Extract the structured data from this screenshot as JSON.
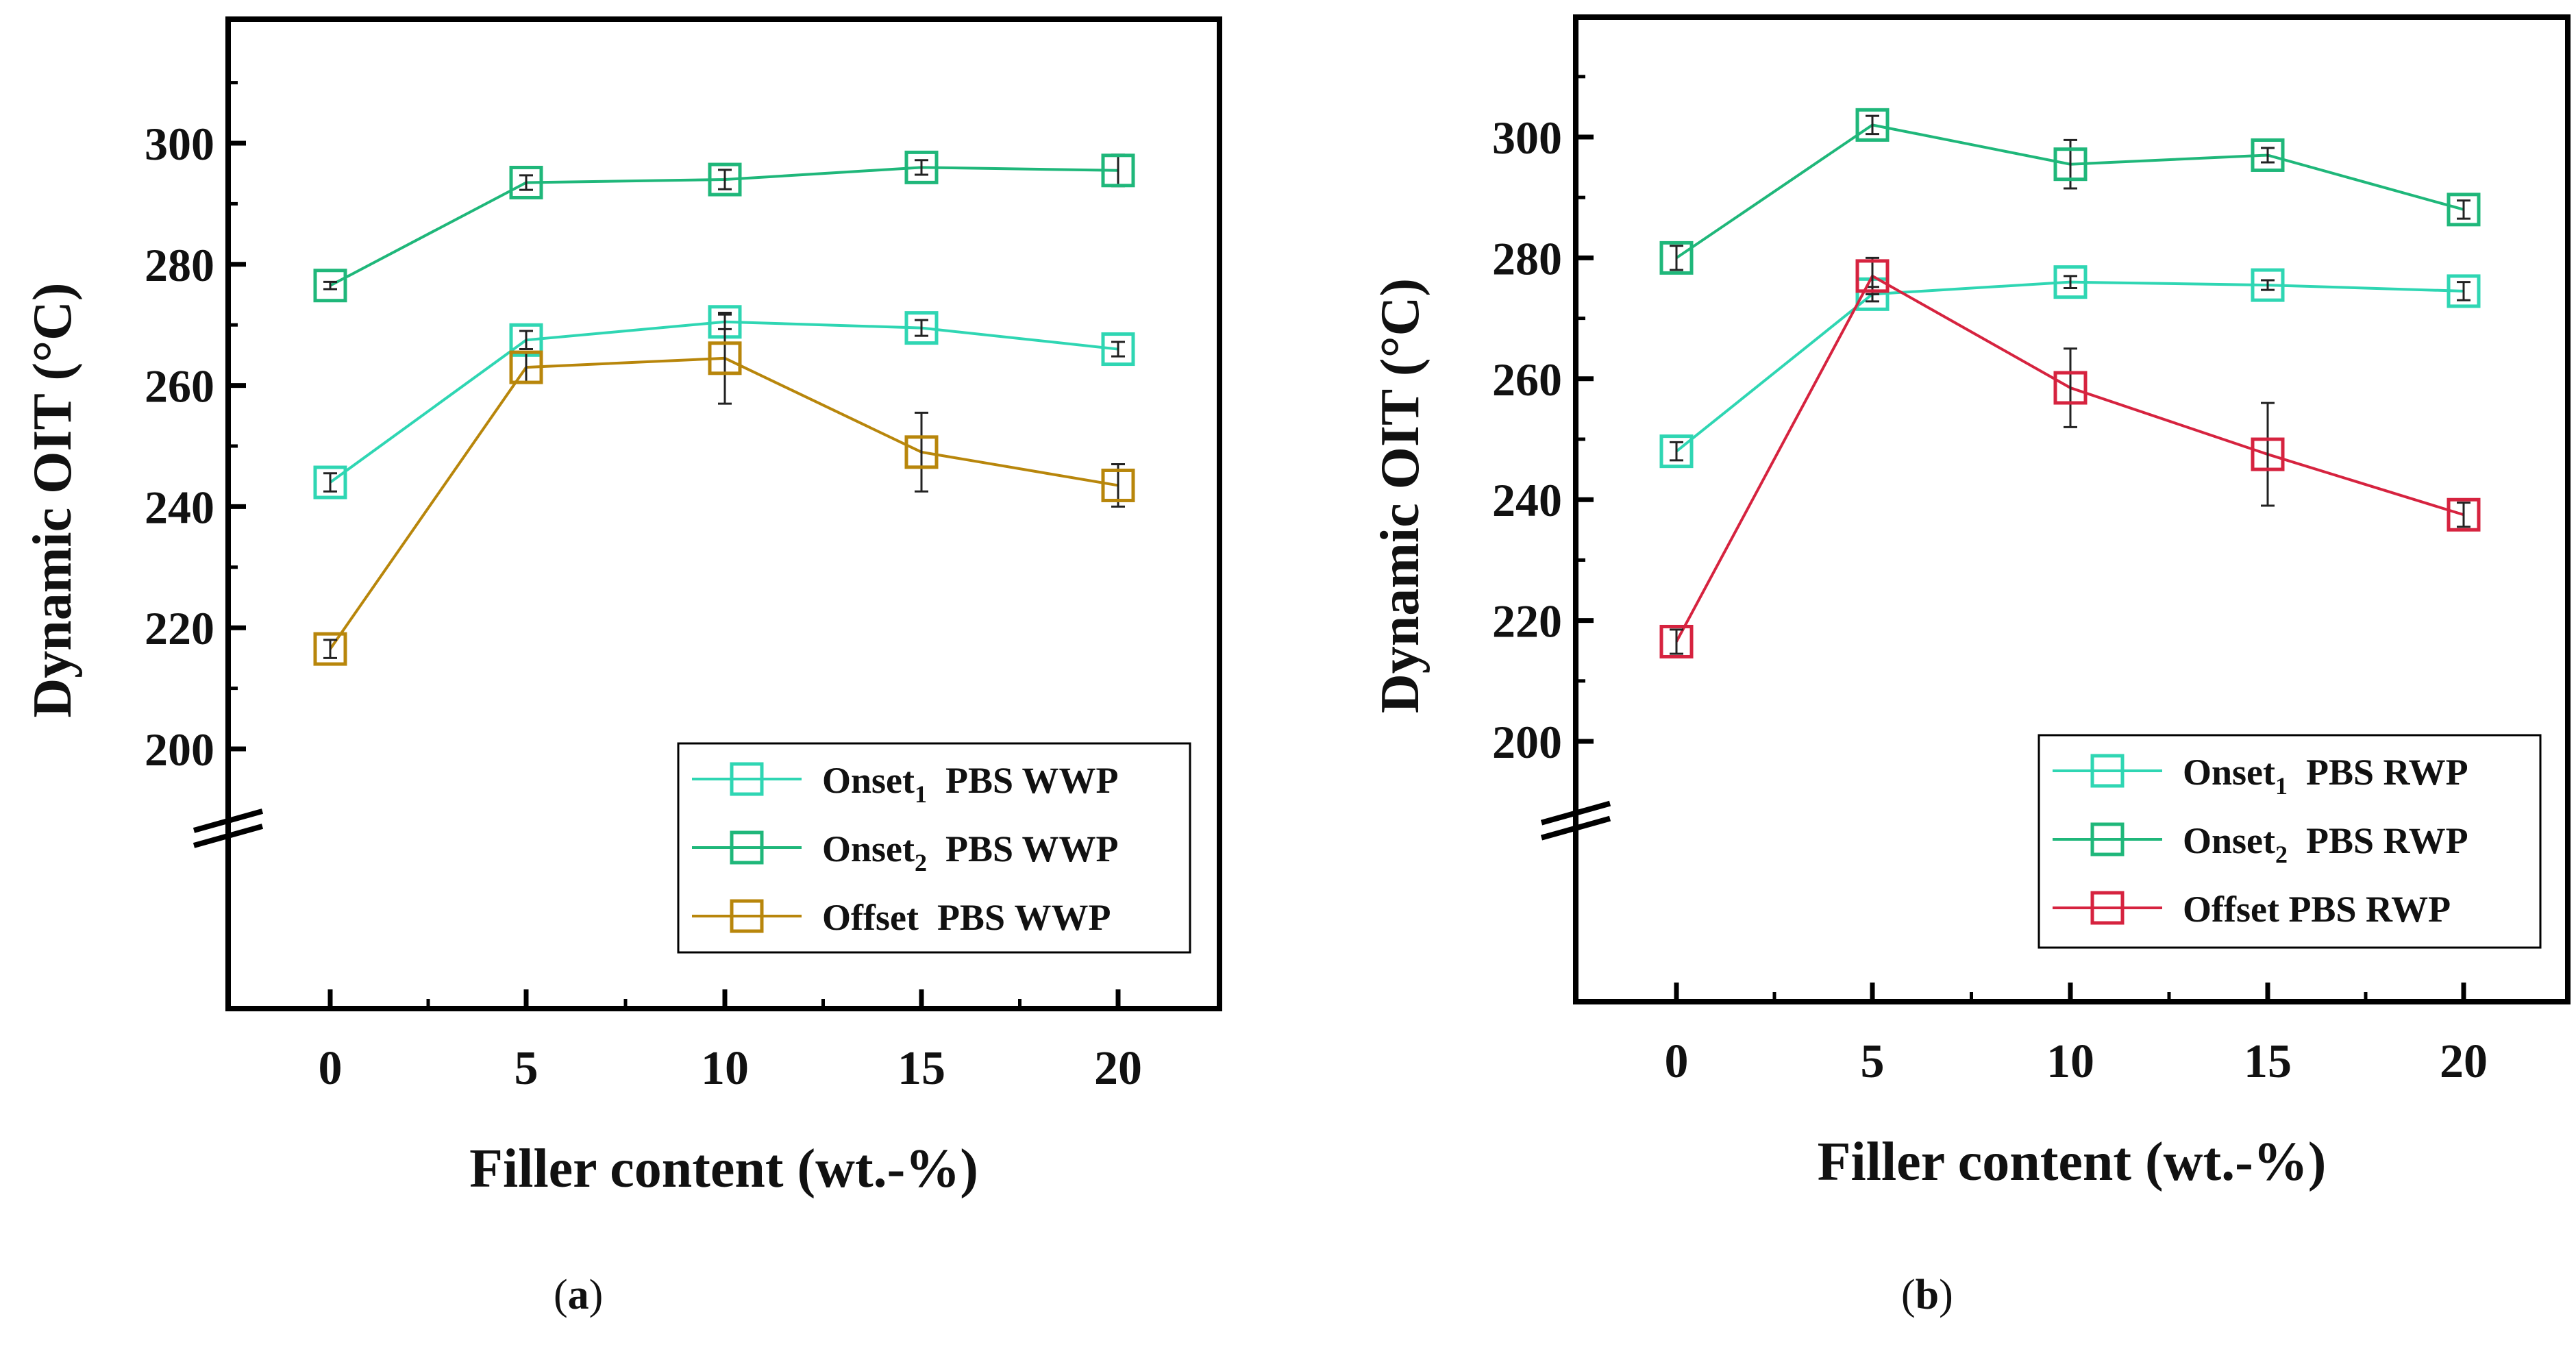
{
  "chart_data": [
    {
      "type": "line",
      "panel_label": "a",
      "xlabel": "Filler content (wt.-%)",
      "ylabel": "Dynamic OIT (°C)",
      "x": [
        0,
        5,
        10,
        15,
        20
      ],
      "xticks": [
        "0",
        "5",
        "10",
        "15",
        "20"
      ],
      "yticks": [
        "200",
        "220",
        "240",
        "260",
        "280",
        "300"
      ],
      "ylim": [
        157,
        320
      ],
      "axis_break": true,
      "grid": false,
      "legend_position": "bottom-right",
      "series": [
        {
          "name": "Onset1  PBS WWP",
          "name_main": "Onset",
          "name_sub": "1",
          "name_rest": "  PBS WWP",
          "color": "#2fd6b3",
          "values": [
            244,
            267.5,
            270.5,
            269.5,
            266
          ],
          "errors": [
            1.5,
            1.5,
            1.2,
            1.3,
            1.2
          ]
        },
        {
          "name": "Onset2  PBS WWP",
          "name_main": "Onset",
          "name_sub": "2",
          "name_rest": "  PBS WWP",
          "color": "#1fb77a",
          "values": [
            276.5,
            293.5,
            294,
            296,
            295.5
          ],
          "errors": [
            0.6,
            1.2,
            1.6,
            1.2,
            2.6
          ]
        },
        {
          "name": "Offset  PBS WWP",
          "name_main": "Offset",
          "name_sub": "",
          "name_rest": "  PBS WWP",
          "color": "#b8860b",
          "values": [
            216.5,
            263,
            264.5,
            249,
            243.5
          ],
          "errors": [
            1.5,
            2.5,
            7.5,
            6.5,
            3.5
          ]
        }
      ]
    },
    {
      "type": "line",
      "panel_label": "b",
      "xlabel": "Filler content (wt.-%)",
      "ylabel": "Dynamic OIT (°C)",
      "x": [
        0,
        5,
        10,
        15,
        20
      ],
      "xticks": [
        "0",
        "5",
        "10",
        "15",
        "20"
      ],
      "yticks": [
        "200",
        "220",
        "240",
        "260",
        "280",
        "300"
      ],
      "ylim": [
        157,
        320
      ],
      "axis_break": true,
      "grid": false,
      "legend_position": "bottom-right",
      "series": [
        {
          "name": "Onset1  PBS RWP",
          "name_main": "Onset",
          "name_sub": "1",
          "name_rest": "  PBS RWP",
          "color": "#2fd6b3",
          "values": [
            248,
            274,
            276,
            275.5,
            274.5
          ],
          "errors": [
            1.5,
            1.2,
            1.0,
            0.8,
            1.5
          ]
        },
        {
          "name": "Onset2  PBS RWP",
          "name_main": "Onset",
          "name_sub": "2",
          "name_rest": "  PBS RWP",
          "color": "#1fb77a",
          "values": [
            280,
            302,
            295.5,
            297,
            288
          ],
          "errors": [
            2.0,
            1.5,
            4.0,
            1.2,
            1.5
          ]
        },
        {
          "name": "Offset PBS RWP",
          "name_main": "Offset",
          "name_sub": "",
          "name_rest": " PBS RWP",
          "color": "#d6233f",
          "values": [
            216.5,
            277,
            258.5,
            247.5,
            237.5
          ],
          "errors": [
            2.0,
            3.0,
            6.5,
            8.5,
            2.0
          ]
        }
      ]
    }
  ]
}
